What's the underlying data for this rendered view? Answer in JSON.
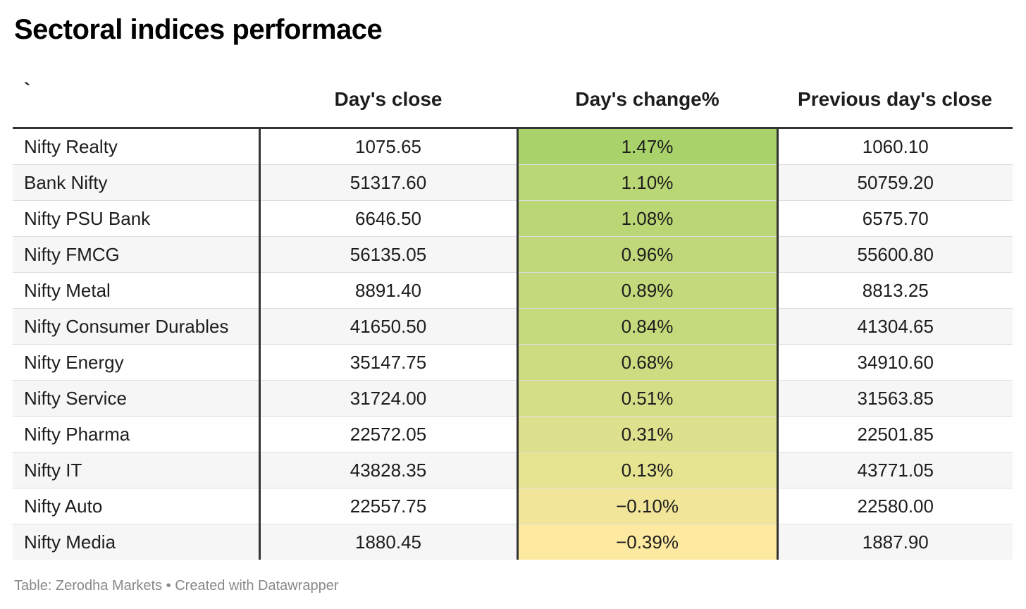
{
  "title": "Sectoral indices performace",
  "footer": "Table: Zerodha Markets • Created with Datawrapper",
  "colors": {
    "high": "#a9d26a",
    "low": "#fde9a0",
    "rule": "#333333"
  },
  "chart_data": {
    "type": "table",
    "columns": [
      "`",
      "Day's close",
      "Day's change%",
      "Previous day's close"
    ],
    "rows": [
      [
        "Nifty Realty",
        "1075.65",
        "1.47%",
        "1060.10"
      ],
      [
        "Bank Nifty",
        "51317.60",
        "1.10%",
        "50759.20"
      ],
      [
        "Nifty PSU Bank",
        "6646.50",
        "1.08%",
        "6575.70"
      ],
      [
        "Nifty FMCG",
        "56135.05",
        "0.96%",
        "55600.80"
      ],
      [
        "Nifty Metal",
        "8891.40",
        "0.89%",
        "8813.25"
      ],
      [
        "Nifty Consumer Durables",
        "41650.50",
        "0.84%",
        "41304.65"
      ],
      [
        "Nifty Energy",
        "35147.75",
        "0.68%",
        "34910.60"
      ],
      [
        "Nifty Service",
        "31724.00",
        "0.51%",
        "31563.85"
      ],
      [
        "Nifty Pharma",
        "22572.05",
        "0.31%",
        "22501.85"
      ],
      [
        "Nifty IT",
        "43828.35",
        "0.13%",
        "43771.05"
      ],
      [
        "Nifty Auto",
        "22557.75",
        "−0.10%",
        "22580.00"
      ],
      [
        "Nifty Media",
        "1880.45",
        "−0.39%",
        "1887.90"
      ]
    ],
    "change_values": [
      1.47,
      1.1,
      1.08,
      0.96,
      0.89,
      0.84,
      0.68,
      0.51,
      0.31,
      0.13,
      -0.1,
      -0.39
    ]
  }
}
